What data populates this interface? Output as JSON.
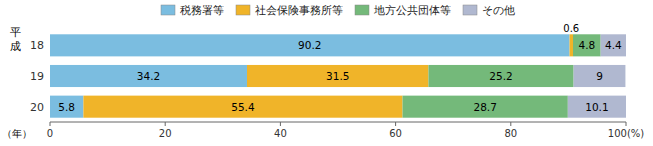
{
  "chart_data": {
    "type": "bar",
    "orientation": "horizontal",
    "stacked": true,
    "data_labels": true,
    "categories": [
      "18",
      "19",
      "20"
    ],
    "series": [
      {
        "name": "税務署等",
        "color": "#7bbde0",
        "values": [
          90.2,
          34.2,
          5.8
        ]
      },
      {
        "name": "社会保険事務所等",
        "color": "#f0b429",
        "values": [
          0.6,
          31.5,
          55.4
        ]
      },
      {
        "name": "地方公共団体等",
        "color": "#74b97a",
        "values": [
          4.8,
          25.2,
          28.7
        ]
      },
      {
        "name": "その他",
        "color": "#b0b8d0",
        "values": [
          4.4,
          9.0,
          10.1
        ]
      }
    ],
    "xlim": [
      0,
      100
    ],
    "xticks": [
      0,
      20,
      40,
      60,
      80,
      {
        "value": 100,
        "label": "100(%)"
      }
    ],
    "annotations": [
      "平成",
      "（年）"
    ]
  }
}
